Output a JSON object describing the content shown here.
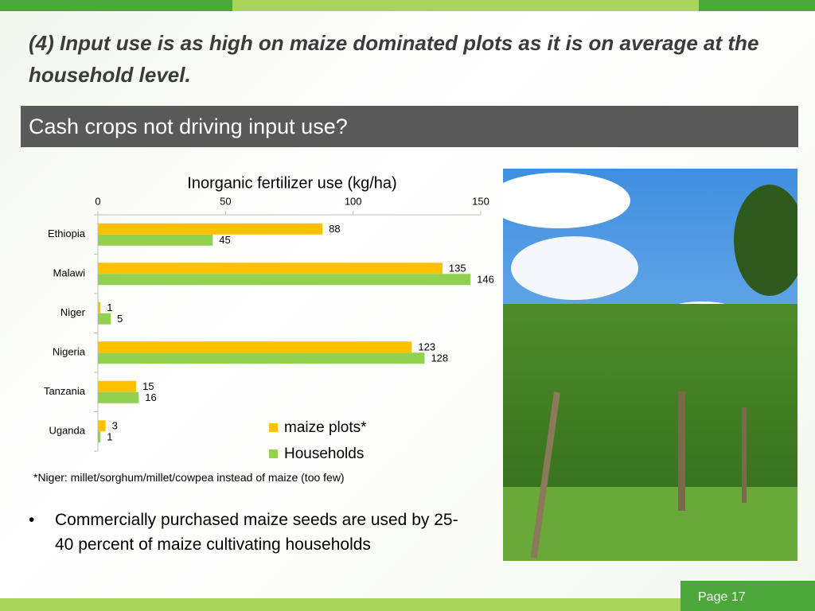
{
  "header": {
    "title": "(4) Input use is as high on maize dominated plots as it is on average at the household level."
  },
  "banner": "Cash crops not driving input use?",
  "chart_data": {
    "type": "hbar",
    "title": "Inorganic fertilizer use  (kg/ha)",
    "categories": [
      "Ethiopia",
      "Malawi",
      "Niger",
      "Nigeria",
      "Tanzania",
      "Uganda"
    ],
    "series": [
      {
        "name": "maize plots*",
        "color": "#ffc000",
        "values": [
          88,
          135,
          1,
          123,
          15,
          3
        ]
      },
      {
        "name": "Households",
        "color": "#92d050",
        "values": [
          45,
          146,
          5,
          128,
          16,
          1
        ]
      }
    ],
    "xlim": [
      0,
      150
    ],
    "xticks": [
      0,
      50,
      100,
      150
    ],
    "xaxis_position": "top",
    "grid": false,
    "legend": "bottom-right"
  },
  "footnote": "*Niger: millet/sorghum/millet/cowpea instead of maize (too few)",
  "bullets": [
    "Commercially purchased maize seeds are used by 25-40 percent of maize cultivating households"
  ],
  "page": "Page 17"
}
